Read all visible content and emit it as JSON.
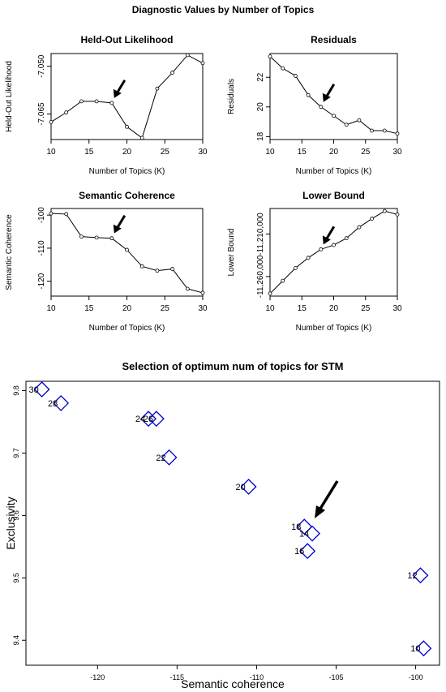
{
  "figure_title": "Diagnostic Values by Number of Topics",
  "chart_data": [
    {
      "type": "line",
      "title": "Held-Out Likelihood",
      "xlabel": "Number of Topics (K)",
      "ylabel": "Held-Out Likelihood",
      "x": [
        10,
        12,
        14,
        16,
        18,
        20,
        22,
        24,
        26,
        28,
        30
      ],
      "y": [
        -7.0675,
        -7.0645,
        -7.061,
        -7.061,
        -7.0615,
        -7.069,
        -7.0725,
        -7.057,
        -7.052,
        -7.0465,
        -7.049
      ],
      "xlim": [
        10,
        30
      ],
      "ylim": [
        -7.073,
        -7.046
      ],
      "xticks": [
        10,
        15,
        20,
        25,
        30
      ],
      "xtick_labels": [
        "10",
        "15",
        "20",
        "25",
        "30"
      ],
      "yticks": [
        -7.065,
        -7.05
      ],
      "ytick_labels": [
        "-7.065",
        "-7.050"
      ],
      "arrow_at_x": 18
    },
    {
      "type": "line",
      "title": "Residuals",
      "xlabel": "Number of Topics (K)",
      "ylabel": "Residuals",
      "x": [
        10,
        12,
        14,
        16,
        18,
        20,
        22,
        24,
        26,
        28,
        30
      ],
      "y": [
        23.4,
        22.6,
        22.1,
        20.8,
        20.0,
        19.4,
        18.8,
        19.1,
        18.4,
        18.4,
        18.2
      ],
      "xlim": [
        10,
        30
      ],
      "ylim": [
        17.8,
        23.6
      ],
      "xticks": [
        10,
        15,
        20,
        25,
        30
      ],
      "xtick_labels": [
        "10",
        "15",
        "20",
        "25",
        "30"
      ],
      "yticks": [
        18,
        20,
        22
      ],
      "ytick_labels": [
        "18",
        "20",
        "22"
      ],
      "arrow_at_x": 18
    },
    {
      "type": "line",
      "title": "Semantic Coherence",
      "xlabel": "Number of Topics (K)",
      "ylabel": "Semantic Coherence",
      "x": [
        10,
        12,
        14,
        16,
        18,
        20,
        22,
        24,
        26,
        28,
        30
      ],
      "y": [
        -99.5,
        -99.7,
        -106.5,
        -106.8,
        -107.0,
        -110.5,
        -115.5,
        -116.8,
        -116.3,
        -122.3,
        -123.5
      ],
      "xlim": [
        10,
        30
      ],
      "ylim": [
        -124.5,
        -98.0
      ],
      "xticks": [
        10,
        15,
        20,
        25,
        30
      ],
      "xtick_labels": [
        "10",
        "15",
        "20",
        "25",
        "30"
      ],
      "yticks": [
        -120,
        -110,
        -100
      ],
      "ytick_labels": [
        "-120",
        "-110",
        "-100"
      ],
      "arrow_at_x": 18
    },
    {
      "type": "line",
      "title": "Lower Bound",
      "xlabel": "Number of Topics (K)",
      "ylabel": "Lower Bound",
      "x": [
        10,
        12,
        14,
        16,
        18,
        20,
        22,
        24,
        26,
        28,
        30
      ],
      "y": [
        -11280000,
        -11265000,
        -11250000,
        -11238000,
        -11228000,
        -11223000,
        -11215000,
        -11202000,
        -11192000,
        -11183000,
        -11187000
      ],
      "xlim": [
        10,
        30
      ],
      "ylim": [
        -11283000,
        -11180000
      ],
      "xticks": [
        10,
        15,
        20,
        25,
        30
      ],
      "xtick_labels": [
        "10",
        "15",
        "20",
        "25",
        "30"
      ],
      "yticks": [
        -11260000,
        -11210000
      ],
      "ytick_labels": [
        "-11,260,000",
        "-11,210,000"
      ],
      "arrow_at_x": 18
    },
    {
      "type": "scatter",
      "title": "Selection of optimum num of topics for STM",
      "xlabel": "Semantic coherence",
      "ylabel": "Exclusivity",
      "points": [
        {
          "label": "30",
          "x": -123.5,
          "y": 9.802
        },
        {
          "label": "28",
          "x": -122.3,
          "y": 9.78
        },
        {
          "label": "24",
          "x": -116.8,
          "y": 9.755
        },
        {
          "label": "26",
          "x": -116.3,
          "y": 9.755
        },
        {
          "label": "22",
          "x": -115.5,
          "y": 9.693
        },
        {
          "label": "20",
          "x": -110.5,
          "y": 9.646
        },
        {
          "label": "18",
          "x": -107.0,
          "y": 9.582
        },
        {
          "label": "14",
          "x": -106.5,
          "y": 9.571
        },
        {
          "label": "16",
          "x": -106.8,
          "y": 9.543
        },
        {
          "label": "12",
          "x": -99.7,
          "y": 9.504
        },
        {
          "label": "10",
          "x": -99.5,
          "y": 9.387
        }
      ],
      "xlim": [
        -124.5,
        -98.5
      ],
      "ylim": [
        9.36,
        9.815
      ],
      "xticks": [
        -120,
        -115,
        -110,
        -105,
        -100
      ],
      "xtick_labels": [
        "-120",
        "-115",
        "-110",
        "-105",
        "-100"
      ],
      "yticks": [
        9.4,
        9.5,
        9.6,
        9.7,
        9.8
      ],
      "ytick_labels": [
        "9.4",
        "9.5",
        "9.6",
        "9.7",
        "9.8"
      ],
      "marker": "diamond",
      "marker_color": "#0000cc"
    }
  ]
}
